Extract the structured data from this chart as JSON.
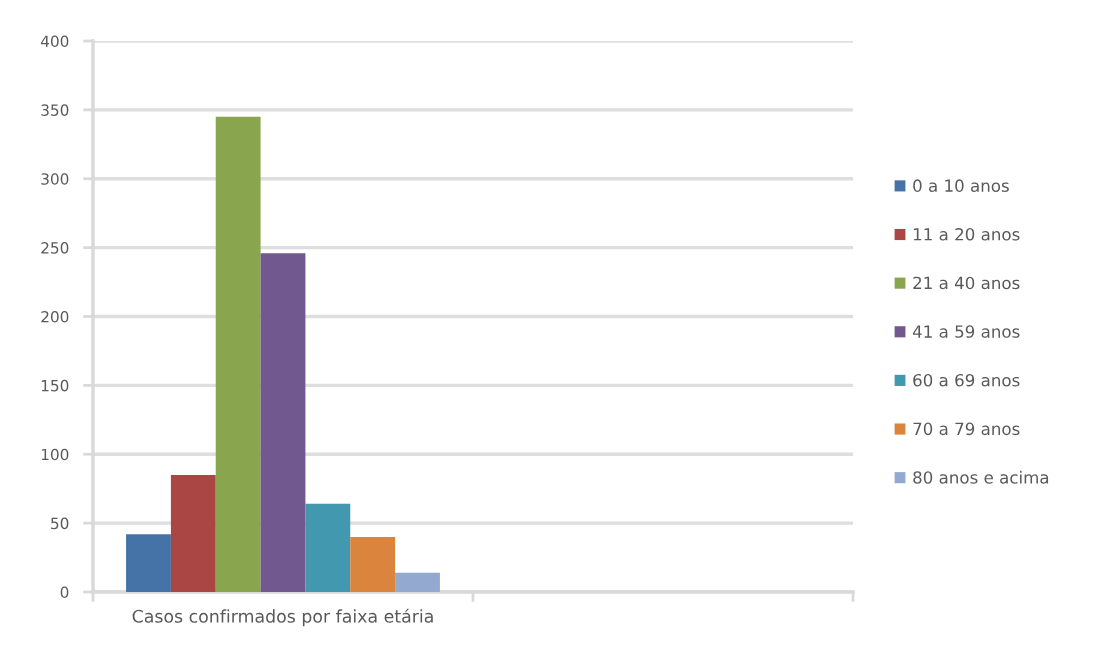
{
  "chart_data": {
    "type": "bar",
    "categories": [
      "Casos confirmados por faixa etária",
      null
    ],
    "series": [
      {
        "name": "0 a 10 anos",
        "color": "#4572a7",
        "values": [
          42,
          null
        ]
      },
      {
        "name": "11 a 20 anos",
        "color": "#aa4643",
        "values": [
          85,
          null
        ]
      },
      {
        "name": "21 a 40 anos",
        "color": "#89a54e",
        "values": [
          345,
          null
        ]
      },
      {
        "name": "41 a 59 anos",
        "color": "#71588f",
        "values": [
          246,
          null
        ]
      },
      {
        "name": "60 a 69 anos",
        "color": "#4198af",
        "values": [
          64,
          null
        ]
      },
      {
        "name": "70 a 79 anos",
        "color": "#db843d",
        "values": [
          40,
          null
        ]
      },
      {
        "name": "80 anos e acima",
        "color": "#93a9cf",
        "values": [
          14,
          null
        ]
      }
    ],
    "ylim": [
      0,
      400
    ],
    "yticks": [
      0,
      50,
      100,
      150,
      200,
      250,
      300,
      350,
      400
    ],
    "grid": "y",
    "legend": "right"
  }
}
